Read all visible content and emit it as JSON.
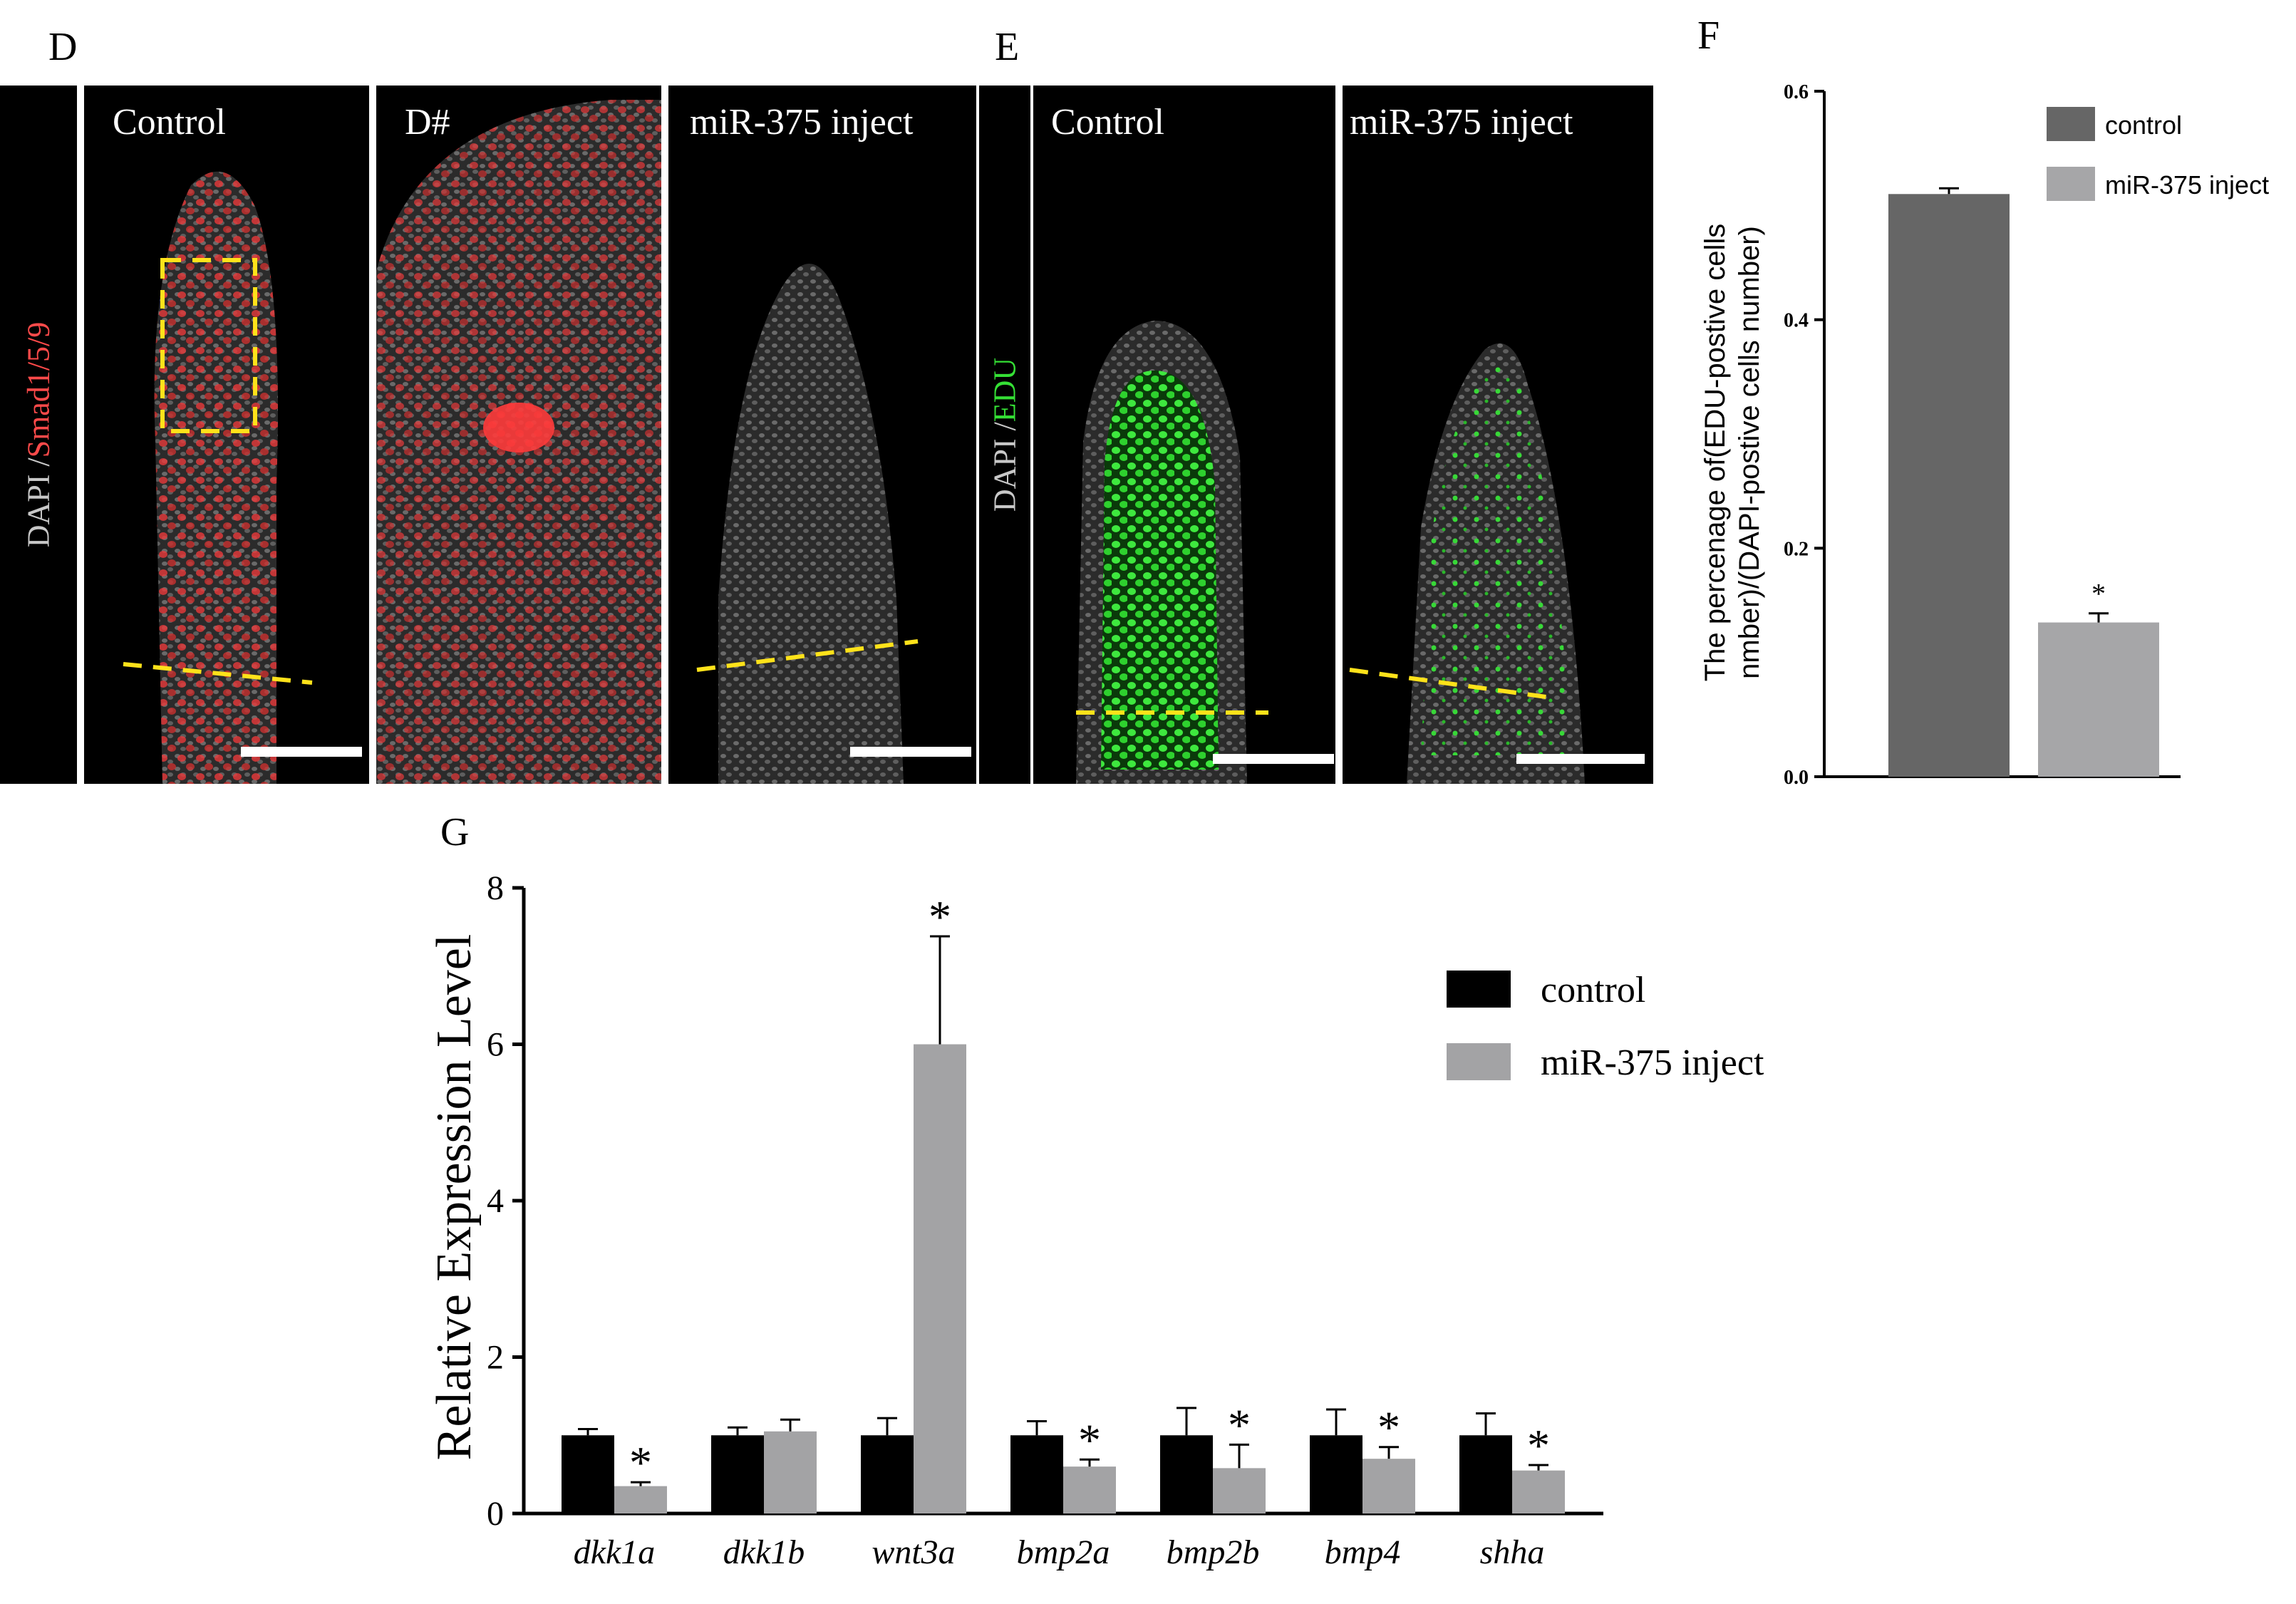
{
  "panels": {
    "D": {
      "letter": "D",
      "side_label_a": "DAPI /",
      "side_label_b": "Smad1/5/9",
      "images": [
        {
          "caption": "Control"
        },
        {
          "caption": "D#"
        },
        {
          "caption": "miR-375 inject"
        }
      ]
    },
    "E": {
      "letter": "E",
      "side_label_a": "DAPI /",
      "side_label_b": "EDU",
      "images": [
        {
          "caption": "Control"
        },
        {
          "caption": "miR-375 inject"
        }
      ]
    },
    "F": {
      "letter": "F"
    },
    "G": {
      "letter": "G"
    }
  },
  "chart_data": [
    {
      "panel": "F",
      "type": "bar",
      "categories": [
        "control",
        "miR-375 inject"
      ],
      "values": [
        0.51,
        0.135
      ],
      "errors": [
        0.005,
        0.008
      ],
      "significance": [
        "",
        "*"
      ],
      "colors": [
        "#666666",
        "#a6a6a8"
      ],
      "ylabel_line1": "The percenage of(EDU-postive cells",
      "ylabel_line2": "nmber)/(DAPI-postive cells number)",
      "ylim": [
        0,
        0.6
      ],
      "yticks": [
        "0.0",
        "0.2",
        "0.4",
        "0.6"
      ],
      "legend": [
        "control",
        "miR-375 inject"
      ],
      "legend_position": "top-right"
    },
    {
      "panel": "G",
      "type": "bar",
      "categories": [
        "dkk1a",
        "dkk1b",
        "wnt3a",
        "bmp2a",
        "bmp2b",
        "bmp4",
        "shha"
      ],
      "series": [
        {
          "name": "control",
          "color": "#000000",
          "values": [
            1.0,
            1.0,
            1.0,
            1.0,
            1.0,
            1.0,
            1.0
          ],
          "errors": [
            0.08,
            0.1,
            0.22,
            0.18,
            0.35,
            0.33,
            0.28
          ],
          "significance": [
            "",
            "",
            "",
            "",
            "",
            "",
            ""
          ]
        },
        {
          "name": "miR-375 inject",
          "color": "#a3a3a5",
          "values": [
            0.35,
            1.05,
            6.0,
            0.6,
            0.58,
            0.7,
            0.55
          ],
          "errors": [
            0.05,
            0.15,
            1.38,
            0.09,
            0.3,
            0.15,
            0.07
          ],
          "significance": [
            "*",
            "",
            "*",
            "*",
            "*",
            "*",
            "*"
          ]
        }
      ],
      "ylabel": "Relative Expression Level",
      "ylim": [
        0,
        8
      ],
      "yticks": [
        "0",
        "2",
        "4",
        "6",
        "8"
      ],
      "legend_position": "top-right"
    }
  ]
}
